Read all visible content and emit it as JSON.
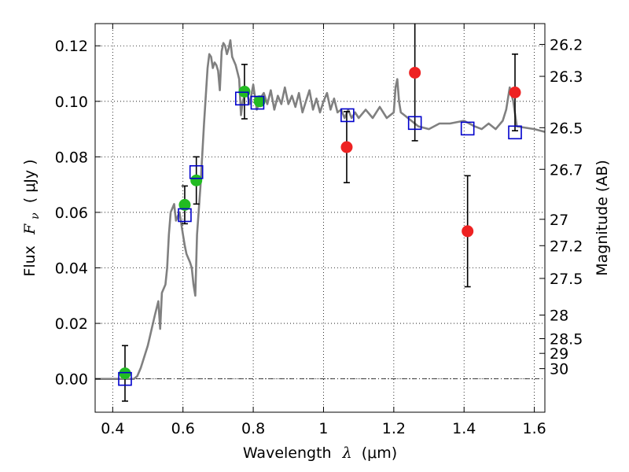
{
  "chart_data": {
    "type": "scatter",
    "title": "",
    "xlabel": {
      "prefix": "Wavelength",
      "symbol": "λ",
      "unit": "(μm)"
    },
    "ylabel": {
      "prefix": "Flux",
      "symbol": "F",
      "subscript": "ν",
      "unit": "( μJy )"
    },
    "ylabel_right": "Magnitude (AB)",
    "xlim": [
      0.35,
      1.63
    ],
    "ylim": [
      -0.012,
      0.128
    ],
    "grid": true,
    "x_ticks": [
      0.4,
      0.6,
      0.8,
      1.0,
      1.2,
      1.4,
      1.6
    ],
    "x_tick_labels": [
      "0.4",
      "0.6",
      "0.8",
      "1",
      "1.2",
      "1.4",
      "1.6"
    ],
    "y_ticks": [
      0.0,
      0.02,
      0.04,
      0.06,
      0.08,
      0.1,
      0.12
    ],
    "y_tick_labels": [
      "0.00",
      "0.02",
      "0.04",
      "0.06",
      "0.08",
      "0.10",
      "0.12"
    ],
    "right_ticks": [
      {
        "label": "26.2",
        "flux": 0.1205
      },
      {
        "label": "26.3",
        "flux": 0.109
      },
      {
        "label": "26.5",
        "flux": 0.0905
      },
      {
        "label": "26.7",
        "flux": 0.0755
      },
      {
        "label": "27",
        "flux": 0.0575
      },
      {
        "label": "27.2",
        "flux": 0.048
      },
      {
        "label": "27.5",
        "flux": 0.0362
      },
      {
        "label": "28",
        "flux": 0.023
      },
      {
        "label": "28.5",
        "flux": 0.0145
      },
      {
        "label": "29",
        "flux": 0.0092
      },
      {
        "label": "30",
        "flux": 0.0037
      }
    ],
    "series": [
      {
        "marker": "line",
        "color": "#808080",
        "x": [
          0.35,
          0.46,
          0.47,
          0.48,
          0.5,
          0.52,
          0.53,
          0.535,
          0.54,
          0.55,
          0.555,
          0.56,
          0.565,
          0.575,
          0.58,
          0.59,
          0.6,
          0.605,
          0.61,
          0.62,
          0.625,
          0.63,
          0.635,
          0.64,
          0.65,
          0.66,
          0.67,
          0.675,
          0.68,
          0.685,
          0.69,
          0.695,
          0.7,
          0.705,
          0.71,
          0.715,
          0.72,
          0.725,
          0.73,
          0.735,
          0.74,
          0.75,
          0.76,
          0.765,
          0.77,
          0.78,
          0.79,
          0.8,
          0.81,
          0.82,
          0.83,
          0.84,
          0.85,
          0.86,
          0.87,
          0.88,
          0.89,
          0.9,
          0.91,
          0.92,
          0.93,
          0.94,
          0.95,
          0.96,
          0.97,
          0.98,
          0.99,
          1.0,
          1.01,
          1.02,
          1.03,
          1.04,
          1.05,
          1.06,
          1.07,
          1.08,
          1.09,
          1.1,
          1.12,
          1.14,
          1.16,
          1.18,
          1.2,
          1.205,
          1.21,
          1.215,
          1.22,
          1.23,
          1.25,
          1.27,
          1.3,
          1.33,
          1.36,
          1.4,
          1.43,
          1.45,
          1.47,
          1.49,
          1.51,
          1.52,
          1.53,
          1.54,
          1.55,
          1.6,
          1.63
        ],
        "y": [
          0.0,
          0.0,
          0.001,
          0.004,
          0.012,
          0.023,
          0.028,
          0.018,
          0.031,
          0.034,
          0.04,
          0.052,
          0.06,
          0.063,
          0.057,
          0.06,
          0.052,
          0.048,
          0.045,
          0.042,
          0.04,
          0.034,
          0.03,
          0.052,
          0.07,
          0.092,
          0.112,
          0.117,
          0.116,
          0.112,
          0.114,
          0.113,
          0.111,
          0.104,
          0.118,
          0.121,
          0.12,
          0.117,
          0.119,
          0.122,
          0.116,
          0.113,
          0.108,
          0.095,
          0.1,
          0.104,
          0.099,
          0.106,
          0.097,
          0.101,
          0.103,
          0.099,
          0.104,
          0.097,
          0.102,
          0.099,
          0.105,
          0.099,
          0.102,
          0.098,
          0.103,
          0.096,
          0.1,
          0.104,
          0.097,
          0.101,
          0.096,
          0.1,
          0.103,
          0.097,
          0.101,
          0.096,
          0.097,
          0.094,
          0.097,
          0.094,
          0.096,
          0.094,
          0.097,
          0.094,
          0.098,
          0.094,
          0.096,
          0.105,
          0.108,
          0.1,
          0.096,
          0.095,
          0.093,
          0.091,
          0.09,
          0.092,
          0.092,
          0.093,
          0.091,
          0.09,
          0.092,
          0.09,
          0.093,
          0.097,
          0.105,
          0.1,
          0.091,
          0.09,
          0.089
        ]
      },
      {
        "marker": "circle",
        "color": "#22bb22",
        "x": [
          0.435,
          0.605,
          0.638,
          0.775,
          0.818
        ],
        "y": [
          0.002,
          0.0627,
          0.0715,
          0.1035,
          0.1
        ],
        "err": [
          0.01,
          0.0068,
          0.0085,
          0.0098,
          0.0
        ]
      },
      {
        "marker": "circle",
        "color": "#ee2222",
        "x": [
          1.066,
          1.26,
          1.41,
          1.545
        ],
        "y": [
          0.0835,
          0.1103,
          0.0532,
          0.1032
        ],
        "err": [
          0.0128,
          0.0245,
          0.02,
          0.0138
        ]
      },
      {
        "marker": "square",
        "color": "#0000cc",
        "x": [
          0.435,
          0.605,
          0.638,
          0.768,
          0.812,
          1.068,
          1.26,
          1.41,
          1.545
        ],
        "y": [
          0.0,
          0.059,
          0.0745,
          0.101,
          0.0995,
          0.095,
          0.0922,
          0.0902,
          0.0888
        ]
      }
    ]
  }
}
